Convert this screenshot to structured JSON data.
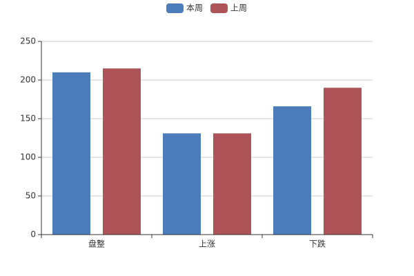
{
  "chart_data": {
    "type": "bar",
    "categories": [
      "盘整",
      "上涨",
      "下跌"
    ],
    "series": [
      {
        "name": "本周",
        "color": "#4b7dbb",
        "values": [
          210,
          131,
          166
        ]
      },
      {
        "name": "上周",
        "color": "#ae5458",
        "values": [
          215,
          131,
          190
        ]
      }
    ],
    "ylim": [
      0,
      250
    ],
    "yticks": [
      0,
      50,
      100,
      150,
      200,
      250
    ],
    "grid": true,
    "legend": "top"
  }
}
